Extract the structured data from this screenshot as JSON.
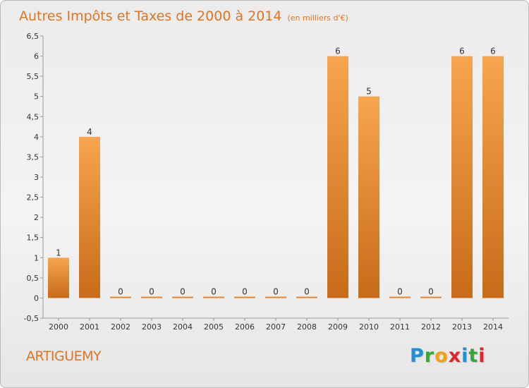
{
  "chart_data": {
    "type": "bar",
    "title": "Autres Impôts et Taxes de 2000 à 2014",
    "title_unit": "(en milliers d'€)",
    "categories": [
      "2000",
      "2001",
      "2002",
      "2003",
      "2004",
      "2005",
      "2006",
      "2007",
      "2008",
      "2009",
      "2010",
      "2011",
      "2012",
      "2013",
      "2014"
    ],
    "values": [
      1,
      4,
      0,
      0,
      0,
      0,
      0,
      0,
      0,
      6,
      5,
      0,
      0,
      6,
      6
    ],
    "ylim": [
      -0.5,
      6.5
    ],
    "yticks": [
      "-0,5",
      "0",
      "0,5",
      "1",
      "1,5",
      "2",
      "2,5",
      "3",
      "3,5",
      "4",
      "4,5",
      "5",
      "5,5",
      "6",
      "6,5"
    ],
    "grid": false,
    "bar_color_light": "#f7a54f",
    "bar_color_dark": "#c86b1a"
  },
  "footer": {
    "place": "ARTIGUEMY",
    "logo_letters": [
      {
        "ch": "P",
        "color": "#1f8fd6"
      },
      {
        "ch": "r",
        "color": "#3aa53a"
      },
      {
        "ch": "o",
        "color": "#f2a20c"
      },
      {
        "ch": "x",
        "color": "#e2232a"
      },
      {
        "ch": "i",
        "color": "#1f8fd6"
      },
      {
        "ch": "t",
        "color": "#3aa53a"
      },
      {
        "ch": "i",
        "color": "#e2232a"
      }
    ]
  }
}
